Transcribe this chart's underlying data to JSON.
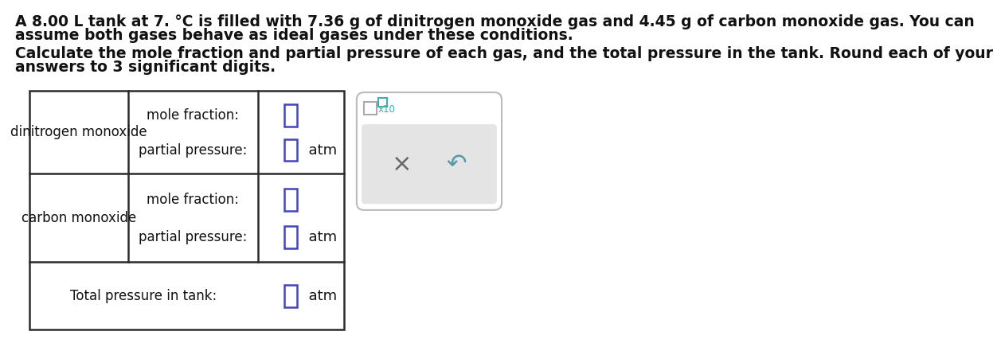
{
  "title_line1": "A 8.00 L tank at 7. °C is filled with 7.36 g of dinitrogen monoxide gas and 4.45 g of carbon monoxide gas. You can",
  "title_line2": "assume both gases behave as ideal gases under these conditions.",
  "instruction_line1": "Calculate the mole fraction and partial pressure of each gas, and the total pressure in the tank. Round each of your",
  "instruction_line2": "answers to 3 significant digits.",
  "row1_label": "dinitrogen monoxide",
  "row2_label": "carbon monoxide",
  "row3_label": "Total pressure in tank:",
  "mole_fraction_label": "mole fraction:",
  "partial_pressure_label": "partial pressure:",
  "atm_label": "atm",
  "x10_label": "x10",
  "x_symbol": "×",
  "undo_symbol": "↶",
  "bg_color": "#ffffff",
  "table_border_color": "#2b2b2b",
  "input_box_color": "#4444bb",
  "input_box_color_teal": "#44aaaa",
  "side_panel_border": "#bbbbbb",
  "side_panel_bg": "#ffffff",
  "side_panel_inner_bg": "#e4e4e4",
  "text_color": "#111111",
  "x_color": "#666666",
  "undo_color": "#5599aa",
  "x10_color": "#44aaaa",
  "font_size_body": 13.5,
  "font_size_cell": 12,
  "font_size_atm": 13
}
